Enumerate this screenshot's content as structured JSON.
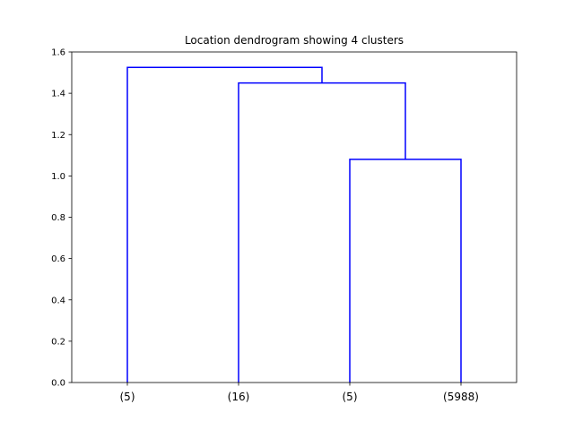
{
  "chart_data": {
    "type": "dendrogram",
    "title": "Location dendrogram showing 4 clusters",
    "ylim": [
      0,
      1.6
    ],
    "yticks": [
      "0.0",
      "0.2",
      "0.4",
      "0.6",
      "0.8",
      "1.0",
      "1.2",
      "1.4",
      "1.6"
    ],
    "leaves": [
      "(5)",
      "(16)",
      "(5)",
      "(5988)"
    ],
    "merges": [
      {
        "left_leaf": 2,
        "right_leaf": 3,
        "height": 1.08
      },
      {
        "left_leaf": 1,
        "right_node": 0,
        "height": 1.45
      },
      {
        "left_leaf": 0,
        "right_node": 1,
        "height": 1.525
      }
    ],
    "line_color": "#0000ff"
  }
}
